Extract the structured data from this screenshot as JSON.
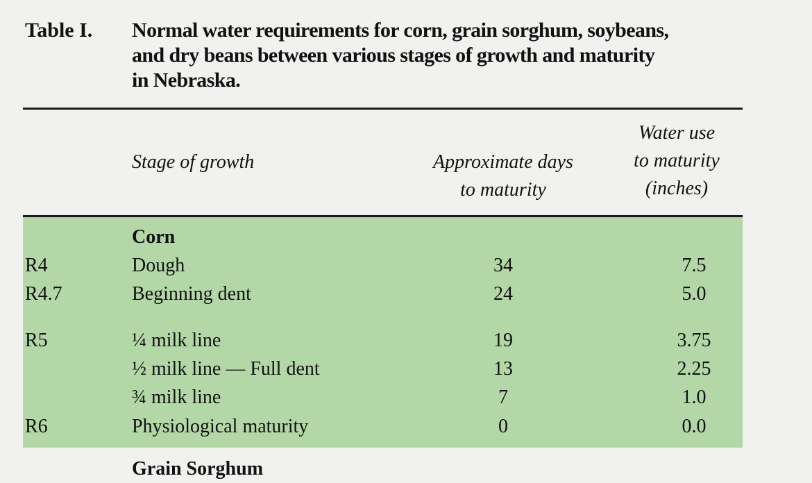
{
  "caption": {
    "label": "Table I.",
    "lines": [
      "Normal water requirements for corn, grain sorghum, soybeans,",
      "and dry beans between various stages of growth and maturity",
      "in Nebraska."
    ]
  },
  "headers": {
    "stage": "Stage of growth",
    "days": [
      "Approximate days",
      "to maturity"
    ],
    "water": [
      "Water use",
      "to maturity",
      "(inches)"
    ]
  },
  "groups": [
    {
      "name": "Corn",
      "rows": [
        {
          "code": "R4",
          "stage": "Dough",
          "days": "34",
          "water": "7.5"
        },
        {
          "code": "R4.7",
          "stage": "Beginning dent",
          "days": "24",
          "water": "5.0"
        },
        {
          "code": "R5",
          "stage": "¼ milk line",
          "days": "19",
          "water": "3.75"
        },
        {
          "code": "",
          "stage": "½ milk line — Full dent",
          "days": "13",
          "water": "2.25"
        },
        {
          "code": "",
          "stage": "¾ milk line",
          "days": "7",
          "water": "1.0"
        },
        {
          "code": "R6",
          "stage": "Physiological maturity",
          "days": "0",
          "water": "0.0"
        }
      ]
    }
  ],
  "next_group_partial": "Grain Sorghum",
  "colors": {
    "band": "#b4d7a7",
    "background": "#f1f1ef",
    "text": "#111111"
  }
}
